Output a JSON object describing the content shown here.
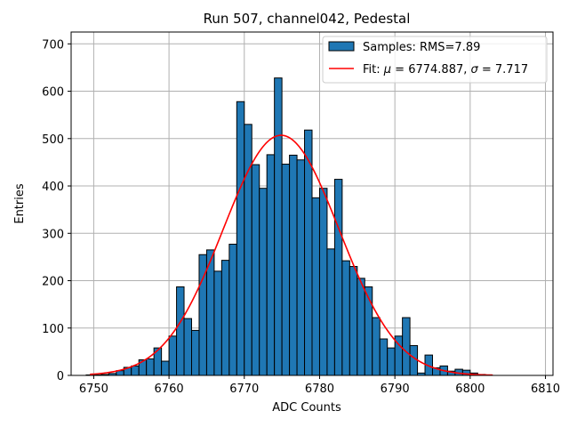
{
  "chart_data": {
    "type": "bar",
    "title": "Run 507, channel042, Pedestal",
    "xlabel": "ADC Counts",
    "ylabel": "Entries",
    "xlim": [
      6747,
      6811
    ],
    "ylim": [
      0,
      725
    ],
    "xticks": [
      6750,
      6760,
      6770,
      6780,
      6790,
      6800,
      6810
    ],
    "yticks": [
      0,
      100,
      200,
      300,
      400,
      500,
      600,
      700
    ],
    "grid": true,
    "legend_position": "top-right",
    "colors": {
      "bars": "#1f77b4",
      "bar_edge": "#000000",
      "fit": "#ff0000",
      "grid": "#b0b0b0"
    },
    "histogram": {
      "name": "Samples: RMS=7.89",
      "bin_width": 1,
      "bins": [
        {
          "x": 6749,
          "count": 1
        },
        {
          "x": 6750,
          "count": 1
        },
        {
          "x": 6751,
          "count": 2
        },
        {
          "x": 6752,
          "count": 4
        },
        {
          "x": 6753,
          "count": 10
        },
        {
          "x": 6754,
          "count": 17
        },
        {
          "x": 6755,
          "count": 20
        },
        {
          "x": 6756,
          "count": 33
        },
        {
          "x": 6757,
          "count": 35
        },
        {
          "x": 6758,
          "count": 58
        },
        {
          "x": 6759,
          "count": 30
        },
        {
          "x": 6760,
          "count": 83
        },
        {
          "x": 6761,
          "count": 187
        },
        {
          "x": 6762,
          "count": 120
        },
        {
          "x": 6763,
          "count": 95
        },
        {
          "x": 6764,
          "count": 255
        },
        {
          "x": 6765,
          "count": 265
        },
        {
          "x": 6766,
          "count": 220
        },
        {
          "x": 6767,
          "count": 243
        },
        {
          "x": 6768,
          "count": 277
        },
        {
          "x": 6769,
          "count": 578
        },
        {
          "x": 6770,
          "count": 530
        },
        {
          "x": 6771,
          "count": 445
        },
        {
          "x": 6772,
          "count": 395
        },
        {
          "x": 6773,
          "count": 466
        },
        {
          "x": 6774,
          "count": 628
        },
        {
          "x": 6775,
          "count": 446
        },
        {
          "x": 6776,
          "count": 465
        },
        {
          "x": 6777,
          "count": 455
        },
        {
          "x": 6778,
          "count": 518
        },
        {
          "x": 6779,
          "count": 375
        },
        {
          "x": 6780,
          "count": 395
        },
        {
          "x": 6781,
          "count": 267
        },
        {
          "x": 6782,
          "count": 414
        },
        {
          "x": 6783,
          "count": 242
        },
        {
          "x": 6784,
          "count": 230
        },
        {
          "x": 6785,
          "count": 205
        },
        {
          "x": 6786,
          "count": 187
        },
        {
          "x": 6787,
          "count": 122
        },
        {
          "x": 6788,
          "count": 77
        },
        {
          "x": 6789,
          "count": 58
        },
        {
          "x": 6790,
          "count": 83
        },
        {
          "x": 6791,
          "count": 122
        },
        {
          "x": 6792,
          "count": 63
        },
        {
          "x": 6793,
          "count": 5
        },
        {
          "x": 6794,
          "count": 43
        },
        {
          "x": 6795,
          "count": 16
        },
        {
          "x": 6796,
          "count": 20
        },
        {
          "x": 6797,
          "count": 9
        },
        {
          "x": 6798,
          "count": 13
        },
        {
          "x": 6799,
          "count": 11
        },
        {
          "x": 6800,
          "count": 5
        },
        {
          "x": 6801,
          "count": 2
        }
      ]
    },
    "fit": {
      "name_prefix": "Fit: ",
      "mu_symbol": "μ",
      "mu_text": " = 6774.887, ",
      "sigma_symbol": "σ",
      "sigma_text": " = 7.717",
      "mu": 6774.887,
      "sigma": 7.717,
      "amplitude": 507,
      "x_range": [
        6749.5,
        6803
      ]
    }
  }
}
